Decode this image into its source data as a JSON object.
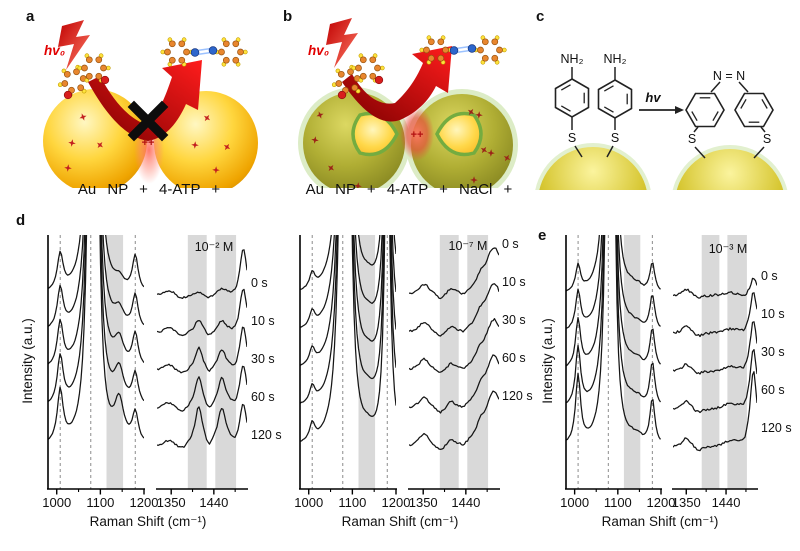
{
  "figure": {
    "panels": {
      "a": {
        "label": "a",
        "hv_label": "hv₀",
        "charge_label": "++",
        "caption": "Au NP + 4-ATP +"
      },
      "b": {
        "label": "b",
        "hv_label": "hv₀",
        "charge_label": "++",
        "caption": "Au NP + 4-ATP + NaCl +"
      },
      "c": {
        "label": "c",
        "hv_label": "hv",
        "nh2_label": "NH₂",
        "s_label": "S",
        "azo_label": "N = N"
      },
      "d": {
        "label": "d"
      },
      "e": {
        "label": "e"
      }
    }
  },
  "chart_data": [
    {
      "id": "d1",
      "panel": "d",
      "type": "line",
      "concentration": "10⁻² M",
      "ylabel": "Intensity (a.u.)",
      "xlabel": "Raman Shift (cm⁻¹)",
      "time_labels": [
        "0 s",
        "10 s",
        "30 s",
        "60 s",
        "120 s"
      ],
      "left": {
        "xlim": [
          980,
          1200
        ],
        "ticks": [
          1000,
          1100,
          1200
        ],
        "minor_ticks": [
          1050,
          1150
        ],
        "dashed_lines": [
          1008,
          1078,
          1180
        ],
        "bands": [
          [
            1114,
            1152
          ]
        ],
        "noise": 0.7,
        "peaks": [
          {
            "c": 1008,
            "w": 8,
            "h": [
              36,
              40,
              44,
              48,
              52
            ]
          },
          {
            "c": 1078,
            "w": 9,
            "h": [
              400,
              400,
              400,
              400,
              400
            ]
          },
          {
            "c": 1092,
            "w": 7,
            "h": [
              300,
              300,
              300,
              300,
              300
            ]
          },
          {
            "c": 1143,
            "w": 13,
            "h": [
              10,
              17,
              25,
              33,
              40
            ]
          },
          {
            "c": 1180,
            "w": 8,
            "h": [
              36,
              34,
              33,
              31,
              30
            ]
          }
        ]
      },
      "right": {
        "xlim": [
          1320,
          1510
        ],
        "ticks": [
          1350,
          1440
        ],
        "minor_ticks": [
          1395,
          1485
        ],
        "dashed_lines": [],
        "bands": [
          [
            1385,
            1425
          ],
          [
            1443,
            1487
          ]
        ],
        "noise": 2.0,
        "peaks": [
          {
            "c": 1345,
            "w": 16,
            "h": [
              6,
              6,
              7,
              7,
              7
            ]
          },
          {
            "c": 1372,
            "w": 12,
            "h": [
              -4,
              -4,
              -5,
              -5,
              -5
            ]
          },
          {
            "c": 1408,
            "w": 10,
            "h": [
              3,
              14,
              24,
              32,
              40
            ]
          },
          {
            "c": 1430,
            "w": 9,
            "h": [
              -3,
              -5,
              -6,
              -7,
              -8
            ]
          },
          {
            "c": 1457,
            "w": 11,
            "h": [
              6,
              12,
              20,
              30,
              38
            ]
          },
          {
            "c": 1486,
            "w": 9,
            "h": [
              -4,
              -4,
              -4,
              -4,
              -4
            ]
          },
          {
            "c": 1502,
            "w": 9,
            "h": [
              48,
              46,
              45,
              44,
              43
            ]
          }
        ]
      }
    },
    {
      "id": "d2",
      "panel": "d",
      "type": "line",
      "concentration": "10⁻⁷ M",
      "xlabel": "Raman Shift (cm⁻¹)",
      "time_labels": [
        "0 s",
        "10 s",
        "30 s",
        "60 s",
        "120 s"
      ],
      "left": {
        "xlim": [
          980,
          1200
        ],
        "ticks": [
          1000,
          1100,
          1200
        ],
        "minor_ticks": [
          1050,
          1150
        ],
        "dashed_lines": [
          1008,
          1078,
          1180
        ],
        "bands": [
          [
            1114,
            1152
          ]
        ],
        "noise": 0.7,
        "peaks": [
          {
            "c": 1008,
            "w": 7,
            "h": [
              15,
              15,
              16,
              16,
              17
            ]
          },
          {
            "c": 1078,
            "w": 10,
            "h": [
              400,
              400,
              400,
              400,
              400
            ]
          },
          {
            "c": 1092,
            "w": 7,
            "h": [
              300,
              300,
              300,
              300,
              300
            ]
          },
          {
            "c": 1135,
            "w": 12,
            "h": [
              6,
              6,
              6,
              7,
              7
            ]
          },
          {
            "c": 1180,
            "w": 7,
            "h": [
              350,
              350,
              350,
              350,
              350
            ]
          }
        ]
      },
      "right": {
        "xlim": [
          1320,
          1510
        ],
        "ticks": [
          1350,
          1440
        ],
        "minor_ticks": [
          1395,
          1485
        ],
        "dashed_lines": [],
        "bands": [
          [
            1385,
            1425
          ],
          [
            1443,
            1487
          ]
        ],
        "noise": 2.0,
        "peaks": [
          {
            "c": 1352,
            "w": 14,
            "h": [
              11,
              11,
              12,
              12,
              13
            ]
          },
          {
            "c": 1386,
            "w": 12,
            "h": [
              -6,
              -6,
              -6,
              -7,
              -7
            ]
          },
          {
            "c": 1408,
            "w": 10,
            "h": [
              5,
              5,
              6,
              6,
              6
            ]
          },
          {
            "c": 1435,
            "w": 10,
            "h": [
              -4,
              -4,
              -4,
              -4,
              -4
            ]
          },
          {
            "c": 1470,
            "w": 9,
            "h": [
              7,
              8,
              8,
              9,
              9
            ]
          },
          {
            "c": 1500,
            "w": 24,
            "h": [
              48,
              50,
              52,
              54,
              56
            ]
          }
        ]
      }
    },
    {
      "id": "e1",
      "panel": "e",
      "type": "line",
      "concentration": "10⁻³ M",
      "ylabel": "Intensity (a.u.)",
      "xlabel": "Raman Shift (cm⁻¹)",
      "time_labels": [
        "0 s",
        "10 s",
        "30 s",
        "60 s",
        "120 s"
      ],
      "left": {
        "xlim": [
          980,
          1200
        ],
        "ticks": [
          1000,
          1100,
          1200
        ],
        "minor_ticks": [
          1050,
          1150
        ],
        "dashed_lines": [
          1008,
          1078,
          1180
        ],
        "bands": [
          [
            1114,
            1152
          ]
        ],
        "noise": 1.0,
        "peaks": [
          {
            "c": 1008,
            "w": 7,
            "h": [
              26,
              38,
              48,
              58,
              68
            ]
          },
          {
            "c": 1078,
            "w": 8,
            "h": [
              400,
              400,
              400,
              400,
              400
            ]
          },
          {
            "c": 1090,
            "w": 6,
            "h": [
              250,
              250,
              250,
              250,
              250
            ]
          },
          {
            "c": 1132,
            "w": 10,
            "h": [
              4,
              4,
              5,
              5,
              5
            ]
          },
          {
            "c": 1148,
            "w": 9,
            "h": [
              5,
              5,
              6,
              6,
              6
            ]
          },
          {
            "c": 1180,
            "w": 7,
            "h": [
              30,
              36,
              40,
              44,
              46
            ]
          }
        ]
      },
      "right": {
        "xlim": [
          1320,
          1510
        ],
        "ticks": [
          1350,
          1440
        ],
        "minor_ticks": [
          1395,
          1485
        ],
        "dashed_lines": [],
        "bands": [
          [
            1385,
            1425
          ],
          [
            1443,
            1487
          ]
        ],
        "noise": 2.4,
        "peaks": [
          {
            "c": 1350,
            "w": 11,
            "h": [
              7,
              8,
              8,
              9,
              10
            ]
          },
          {
            "c": 1378,
            "w": 10,
            "h": [
              -3,
              -3,
              -3,
              -4,
              -4
            ]
          },
          {
            "c": 1450,
            "w": 20,
            "h": [
              3,
              4,
              4,
              5,
              6
            ]
          },
          {
            "c": 1482,
            "w": 8,
            "h": [
              -3,
              -3,
              -4,
              -4,
              -4
            ]
          },
          {
            "c": 1502,
            "w": 9,
            "h": [
              18,
              42,
              52,
              62,
              78
            ]
          }
        ]
      }
    }
  ]
}
